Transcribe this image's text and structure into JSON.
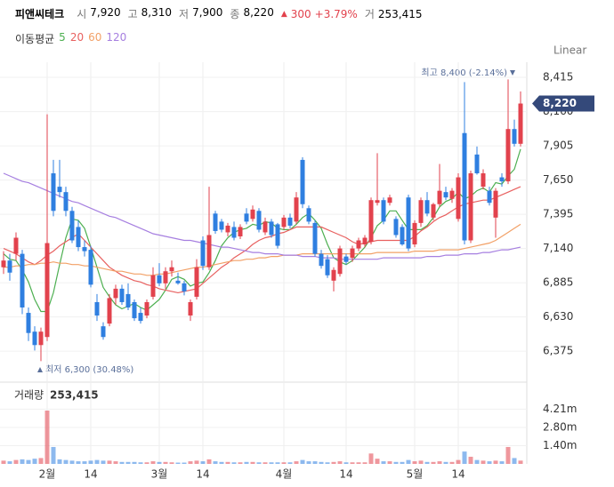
{
  "chart_data": {
    "type": "candlestick",
    "header": {
      "name": "피앤씨테크",
      "items": [
        {
          "label": "시",
          "value": "7,920"
        },
        {
          "label": "고",
          "value": "8,310"
        },
        {
          "label": "저",
          "value": "7,900"
        },
        {
          "label": "종",
          "value": "8,220"
        }
      ],
      "change": "300",
      "change_pct": "+3.79%",
      "volume_label": "거",
      "volume": "253,415"
    },
    "ma_label": "이동평균",
    "scale_mode": "Linear",
    "current_label": "8,220",
    "annotations": {
      "high": "최고 8,400 (-2.14%)",
      "low": "최저 6,300 (30.48%)"
    },
    "up_color": "#e2424d",
    "down_color": "#2f7fe0",
    "categories": [
      null,
      null,
      null,
      null,
      null,
      null,
      null,
      "2월",
      null,
      null,
      null,
      null,
      null,
      null,
      "14",
      null,
      null,
      null,
      null,
      null,
      null,
      null,
      null,
      null,
      null,
      "3월",
      null,
      null,
      null,
      null,
      null,
      null,
      "14",
      null,
      null,
      null,
      null,
      null,
      null,
      null,
      null,
      null,
      null,
      null,
      null,
      "4월",
      null,
      null,
      null,
      null,
      null,
      null,
      null,
      null,
      null,
      "14",
      null,
      null,
      null,
      null,
      null,
      null,
      null,
      null,
      null,
      null,
      "5월",
      null,
      null,
      null,
      null,
      null,
      null,
      "14",
      null,
      null,
      null,
      null,
      null,
      null,
      null,
      null,
      null,
      null
    ],
    "open": [
      7000,
      7050,
      7100,
      7100,
      6660,
      6520,
      6420,
      6480,
      7700,
      7600,
      7560,
      7420,
      7300,
      7150,
      7130,
      6740,
      6560,
      6580,
      6770,
      6840,
      6800,
      6740,
      6660,
      6640,
      6780,
      6940,
      6880,
      6970,
      6900,
      6880,
      6640,
      6780,
      7200,
      7000,
      7400,
      7340,
      7260,
      7300,
      7230,
      7400,
      7360,
      7420,
      7260,
      7340,
      7320,
      7300,
      7370,
      7340,
      7800,
      7440,
      7330,
      7100,
      7060,
      6900,
      6950,
      7080,
      7070,
      7140,
      7170,
      7190,
      7480,
      7500,
      7480,
      7360,
      7300,
      7520,
      7170,
      7330,
      7500,
      7370,
      7470,
      7560,
      7510,
      7360,
      8000,
      7200,
      7840,
      7600,
      7570,
      7370,
      7670,
      7640,
      8030,
      7920
    ],
    "high": [
      7120,
      7100,
      7260,
      7130,
      6700,
      6560,
      6550,
      8140,
      7800,
      7800,
      7600,
      7450,
      7350,
      7200,
      7160,
      6800,
      6590,
      6800,
      6870,
      6870,
      6880,
      6760,
      6700,
      6760,
      7000,
      7030,
      7000,
      7050,
      6960,
      6900,
      6760,
      7060,
      7230,
      7600,
      7420,
      7360,
      7330,
      7340,
      7320,
      7440,
      7460,
      7440,
      7370,
      7360,
      7330,
      7390,
      7400,
      7560,
      7820,
      7460,
      7350,
      7130,
      7090,
      7000,
      7160,
      7100,
      7160,
      7220,
      7240,
      7520,
      7850,
      7520,
      7540,
      7380,
      7320,
      7540,
      7350,
      7520,
      7560,
      7480,
      7770,
      7600,
      7590,
      7700,
      8380,
      7720,
      7900,
      7730,
      7600,
      7590,
      7700,
      8400,
      8100,
      8310
    ],
    "low": [
      6950,
      6900,
      7050,
      6650,
      6450,
      6380,
      6300,
      6450,
      7380,
      7520,
      7380,
      7180,
      7120,
      7080,
      6850,
      6600,
      6460,
      6560,
      6720,
      6720,
      6680,
      6600,
      6580,
      6620,
      6760,
      6860,
      6840,
      6930,
      6870,
      6790,
      6600,
      6760,
      6980,
      6980,
      7250,
      7260,
      7230,
      7200,
      7210,
      7320,
      7340,
      7260,
      7240,
      7220,
      7140,
      7280,
      7290,
      7320,
      7440,
      7320,
      7080,
      6990,
      6920,
      6820,
      6930,
      7020,
      7040,
      7120,
      7150,
      7170,
      7460,
      7320,
      7460,
      7220,
      7160,
      7120,
      7150,
      7300,
      7380,
      7350,
      7450,
      7500,
      7480,
      7340,
      7170,
      7180,
      7690,
      7580,
      7460,
      7220,
      7600,
      7620,
      7900,
      7900
    ],
    "close": [
      7050,
      6960,
      7220,
      6700,
      6510,
      6420,
      6520,
      7180,
      7420,
      7560,
      7420,
      7200,
      7150,
      7120,
      6870,
      6640,
      6480,
      6770,
      6840,
      6740,
      6700,
      6620,
      6600,
      6740,
      6940,
      6880,
      6970,
      7000,
      6880,
      6820,
      6740,
      7000,
      7010,
      7240,
      7270,
      7280,
      7310,
      7220,
      7300,
      7340,
      7430,
      7280,
      7340,
      7240,
      7160,
      7370,
      7310,
      7520,
      7470,
      7340,
      7100,
      7010,
      6940,
      6980,
      7140,
      7040,
      7140,
      7200,
      7220,
      7500,
      7500,
      7340,
      7520,
      7240,
      7170,
      7140,
      7330,
      7500,
      7400,
      7470,
      7570,
      7520,
      7570,
      7670,
      7200,
      7700,
      7700,
      7700,
      7480,
      7570,
      7640,
      8030,
      7920,
      8220
    ],
    "series": [
      {
        "name": "5",
        "color": "#4caf50",
        "values": [
          7100,
          7060,
          7050,
          6980,
          6890,
          6760,
          6670,
          6670,
          6810,
          7020,
          7220,
          7360,
          7350,
          7290,
          7150,
          7000,
          6850,
          6780,
          6720,
          6690,
          6710,
          6730,
          6700,
          6680,
          6720,
          6760,
          6830,
          6910,
          6930,
          6910,
          6860,
          6880,
          6890,
          6960,
          7050,
          7160,
          7220,
          7260,
          7280,
          7290,
          7320,
          7310,
          7340,
          7330,
          7290,
          7280,
          7280,
          7320,
          7370,
          7400,
          7350,
          7290,
          7170,
          7070,
          7040,
          7020,
          7050,
          7100,
          7150,
          7220,
          7310,
          7350,
          7420,
          7420,
          7350,
          7280,
          7280,
          7280,
          7310,
          7370,
          7450,
          7490,
          7510,
          7560,
          7510,
          7530,
          7570,
          7590,
          7560,
          7630,
          7620,
          7680,
          7730,
          7880
        ]
      },
      {
        "name": "20",
        "color": "#e8605f",
        "values": [
          7140,
          7120,
          7100,
          7070,
          7040,
          7020,
          7050,
          7090,
          7120,
          7160,
          7190,
          7220,
          7250,
          7200,
          7150,
          7100,
          7050,
          7000,
          6970,
          6940,
          6920,
          6900,
          6890,
          6870,
          6860,
          6840,
          6830,
          6820,
          6810,
          6820,
          6830,
          6840,
          6880,
          6920,
          6960,
          7000,
          7030,
          7070,
          7100,
          7130,
          7170,
          7200,
          7220,
          7230,
          7250,
          7260,
          7280,
          7300,
          7300,
          7300,
          7300,
          7300,
          7280,
          7260,
          7240,
          7220,
          7190,
          7170,
          7180,
          7190,
          7200,
          7200,
          7200,
          7200,
          7200,
          7200,
          7230,
          7270,
          7300,
          7340,
          7370,
          7390,
          7420,
          7450,
          7470,
          7480,
          7490,
          7500,
          7500,
          7520,
          7540,
          7560,
          7580,
          7600
        ]
      },
      {
        "name": "60",
        "color": "#f2a066",
        "values": [
          7000,
          7000,
          7010,
          7010,
          7020,
          7020,
          7030,
          7030,
          7040,
          7030,
          7030,
          7020,
          7020,
          7010,
          7010,
          7000,
          6990,
          6980,
          6970,
          6970,
          6960,
          6950,
          6950,
          6940,
          6940,
          6950,
          6950,
          6960,
          6970,
          6980,
          6990,
          7000,
          7000,
          7010,
          7020,
          7030,
          7040,
          7050,
          7050,
          7060,
          7060,
          7070,
          7070,
          7080,
          7080,
          7090,
          7090,
          7090,
          7100,
          7100,
          7100,
          7100,
          7100,
          7100,
          7100,
          7100,
          7100,
          7100,
          7100,
          7100,
          7110,
          7110,
          7110,
          7110,
          7110,
          7110,
          7120,
          7120,
          7120,
          7120,
          7130,
          7130,
          7130,
          7130,
          7140,
          7150,
          7160,
          7170,
          7180,
          7200,
          7230,
          7260,
          7290,
          7320
        ]
      },
      {
        "name": "120",
        "color": "#a67fe0",
        "values": [
          7700,
          7680,
          7660,
          7640,
          7630,
          7610,
          7590,
          7570,
          7550,
          7530,
          7510,
          7490,
          7480,
          7460,
          7440,
          7420,
          7400,
          7380,
          7370,
          7350,
          7330,
          7310,
          7290,
          7270,
          7250,
          7240,
          7230,
          7220,
          7210,
          7200,
          7200,
          7190,
          7180,
          7170,
          7160,
          7150,
          7150,
          7140,
          7130,
          7120,
          7110,
          7110,
          7100,
          7100,
          7100,
          7090,
          7090,
          7090,
          7080,
          7080,
          7080,
          7070,
          7070,
          7070,
          7060,
          7060,
          7060,
          7060,
          7060,
          7060,
          7060,
          7070,
          7070,
          7070,
          7070,
          7070,
          7070,
          7070,
          7080,
          7080,
          7080,
          7090,
          7090,
          7090,
          7100,
          7100,
          7100,
          7110,
          7110,
          7120,
          7130,
          7130,
          7140,
          7150
        ]
      }
    ],
    "ylim": [
      6157,
      8528
    ],
    "yticks": [
      {
        "value": 6375,
        "label": "6,375"
      },
      {
        "value": 6630,
        "label": "6,630"
      },
      {
        "value": 6885,
        "label": "6,885"
      },
      {
        "value": 7140,
        "label": "7,140"
      },
      {
        "value": 7395,
        "label": "7,395"
      },
      {
        "value": 7650,
        "label": "7,650"
      },
      {
        "value": 7905,
        "label": "7,905"
      },
      {
        "value": 8160,
        "label": "8,160"
      },
      {
        "value": 8415,
        "label": "8,415"
      }
    ],
    "grid": true,
    "volume": {
      "title": "거래량",
      "current": "253,415",
      "values": [
        250000,
        200000,
        300000,
        350000,
        300000,
        400000,
        450000,
        4100000,
        1300000,
        350000,
        300000,
        250000,
        200000,
        200000,
        250000,
        300000,
        250000,
        250000,
        200000,
        150000,
        150000,
        150000,
        120000,
        120000,
        200000,
        150000,
        150000,
        120000,
        100000,
        100000,
        200000,
        250000,
        200000,
        350000,
        200000,
        150000,
        150000,
        120000,
        120000,
        150000,
        150000,
        120000,
        120000,
        120000,
        120000,
        120000,
        120000,
        200000,
        300000,
        200000,
        200000,
        150000,
        120000,
        150000,
        200000,
        120000,
        120000,
        120000,
        120000,
        800000,
        400000,
        200000,
        200000,
        150000,
        150000,
        300000,
        200000,
        250000,
        150000,
        150000,
        200000,
        150000,
        150000,
        300000,
        950000,
        550000,
        300000,
        250000,
        200000,
        250000,
        200000,
        1300000,
        450000,
        253415
      ],
      "ylim": [
        0,
        6150000
      ],
      "yticks": [
        {
          "value": 1400000,
          "label": "1.40m"
        },
        {
          "value": 2800000,
          "label": "2.80m"
        },
        {
          "value": 4210000,
          "label": "4.21m"
        }
      ]
    }
  }
}
